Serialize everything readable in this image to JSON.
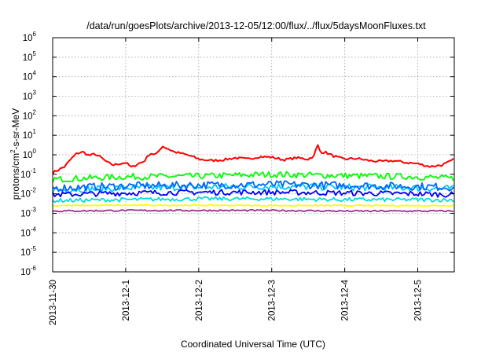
{
  "chart_data": {
    "type": "line",
    "title": "/data/run/goesPlots/archive/2013-12-05/12:00/flux/../flux/5daysMoonFluxes.txt",
    "xlabel": "Coordinated Universal Time (UTC)",
    "ylabel_parts": {
      "base": "protons/cm",
      "exp": "2",
      "rest": "-s-sr-MeV"
    },
    "y_scale": "log",
    "ylim": [
      1e-06,
      1000000.0
    ],
    "y_ticks": [
      {
        "value": 1e-06,
        "base": "10",
        "exp": "-6"
      },
      {
        "value": 1e-05,
        "base": "10",
        "exp": "-5"
      },
      {
        "value": 0.0001,
        "base": "10",
        "exp": "-4"
      },
      {
        "value": 0.001,
        "base": "10",
        "exp": "-3"
      },
      {
        "value": 0.01,
        "base": "10",
        "exp": "-2"
      },
      {
        "value": 0.1,
        "base": "10",
        "exp": "-1"
      },
      {
        "value": 1,
        "base": "10",
        "exp": "0"
      },
      {
        "value": 10,
        "base": "10",
        "exp": "1"
      },
      {
        "value": 100,
        "base": "10",
        "exp": "2"
      },
      {
        "value": 1000,
        "base": "10",
        "exp": "3"
      },
      {
        "value": 10000,
        "base": "10",
        "exp": "4"
      },
      {
        "value": 100000,
        "base": "10",
        "exp": "5"
      },
      {
        "value": 1000000,
        "base": "10",
        "exp": "6"
      }
    ],
    "xlim": [
      "2013-11-30T00:00",
      "2013-12-05T12:00"
    ],
    "x_ticks": [
      "2013-11-30",
      "2013-12-1",
      "2013-12-2",
      "2013-12-3",
      "2013-12-4",
      "2013-12-5"
    ],
    "grid": true,
    "series": [
      {
        "color": "#ff0000",
        "x": [
          "2013-11-30T00:00",
          "2013-11-30T04:00",
          "2013-11-30T06:00",
          "2013-11-30T08:00",
          "2013-11-30T10:00",
          "2013-11-30T12:00",
          "2013-11-30T14:00",
          "2013-11-30T16:00",
          "2013-11-30T18:00",
          "2013-11-30T20:00",
          "2013-11-30T22:00",
          "2013-12-01T00:00",
          "2013-12-01T02:00",
          "2013-12-01T04:00",
          "2013-12-01T06:00",
          "2013-12-01T08:00",
          "2013-12-01T10:00",
          "2013-12-01T12:00",
          "2013-12-01T14:00",
          "2013-12-01T16:00",
          "2013-12-01T18:00",
          "2013-12-01T20:00",
          "2013-12-01T22:00",
          "2013-12-02T00:00",
          "2013-12-02T04:00",
          "2013-12-02T08:00",
          "2013-12-02T12:00",
          "2013-12-02T16:00",
          "2013-12-02T20:00",
          "2013-12-03T00:00",
          "2013-12-03T04:00",
          "2013-12-03T08:00",
          "2013-12-03T12:00",
          "2013-12-03T14:00",
          "2013-12-03T15:00",
          "2013-12-03T16:00",
          "2013-12-03T18:00",
          "2013-12-03T20:00",
          "2013-12-03T22:00",
          "2013-12-04T00:00",
          "2013-12-04T04:00",
          "2013-12-04T08:00",
          "2013-12-04T12:00",
          "2013-12-04T16:00",
          "2013-12-04T20:00",
          "2013-12-05T00:00",
          "2013-12-05T04:00",
          "2013-12-05T08:00",
          "2013-12-05T10:00",
          "2013-12-05T12:00"
        ],
        "y": [
          0.12,
          0.25,
          0.6,
          1.2,
          1.4,
          0.9,
          1.1,
          0.7,
          0.4,
          0.3,
          0.35,
          0.4,
          0.22,
          0.35,
          0.45,
          1.2,
          1.0,
          2.8,
          2.0,
          1.4,
          1.2,
          1.0,
          0.8,
          0.6,
          0.5,
          0.55,
          0.7,
          0.6,
          0.8,
          0.75,
          0.55,
          0.7,
          0.6,
          0.9,
          3.5,
          1.4,
          1.3,
          0.9,
          0.7,
          0.6,
          0.65,
          0.5,
          0.45,
          0.5,
          0.4,
          0.35,
          0.25,
          0.3,
          0.4,
          0.6
        ]
      },
      {
        "color": "#00ff00",
        "x": [
          "2013-11-30T00:00",
          "2013-12-01T00:00",
          "2013-12-02T00:00",
          "2013-12-03T00:00",
          "2013-12-04T00:00",
          "2013-12-05T00:00",
          "2013-12-05T12:00"
        ],
        "y": [
          0.055,
          0.075,
          0.08,
          0.1,
          0.085,
          0.075,
          0.06
        ]
      },
      {
        "color": "#00c8ff",
        "x": [
          "2013-11-30T00:00",
          "2013-12-01T00:00",
          "2013-12-02T00:00",
          "2013-12-03T00:00",
          "2013-12-04T00:00",
          "2013-12-05T00:00",
          "2013-12-05T12:00"
        ],
        "y": [
          0.016,
          0.02,
          0.022,
          0.024,
          0.022,
          0.02,
          0.018
        ]
      },
      {
        "color": "#0064ff",
        "x": [
          "2013-11-30T00:00",
          "2013-12-01T00:00",
          "2013-12-02T00:00",
          "2013-12-03T00:00",
          "2013-12-04T00:00",
          "2013-12-05T00:00",
          "2013-12-05T12:00"
        ],
        "y": [
          0.02,
          0.025,
          0.028,
          0.03,
          0.027,
          0.024,
          0.022
        ]
      },
      {
        "color": "#0000ff",
        "x": [
          "2013-11-30T00:00",
          "2013-12-01T00:00",
          "2013-12-02T00:00",
          "2013-12-03T00:00",
          "2013-12-04T00:00",
          "2013-12-05T00:00",
          "2013-12-05T12:00"
        ],
        "y": [
          0.009,
          0.011,
          0.012,
          0.012,
          0.011,
          0.01,
          0.009
        ]
      },
      {
        "color": "#00dcdc",
        "x": [
          "2013-11-30T00:00",
          "2013-12-01T00:00",
          "2013-12-02T00:00",
          "2013-12-03T00:00",
          "2013-12-04T00:00",
          "2013-12-05T00:00",
          "2013-12-05T12:00"
        ],
        "y": [
          0.0045,
          0.005,
          0.0055,
          0.0055,
          0.005,
          0.005,
          0.0048
        ]
      },
      {
        "color": "#ffff00",
        "x": [
          "2013-11-30T00:00",
          "2013-12-01T00:00",
          "2013-12-02T00:00",
          "2013-12-03T00:00",
          "2013-12-04T00:00",
          "2013-12-05T00:00",
          "2013-12-05T12:00"
        ],
        "y": [
          0.0025,
          0.0026,
          0.0026,
          0.0025,
          0.0025,
          0.0025,
          0.0025
        ]
      },
      {
        "color": "#9b2d8c",
        "x": [
          "2013-11-30T00:00",
          "2013-12-01T00:00",
          "2013-12-02T00:00",
          "2013-12-03T00:00",
          "2013-12-04T00:00",
          "2013-12-05T00:00",
          "2013-12-05T12:00"
        ],
        "y": [
          0.0013,
          0.0014,
          0.0014,
          0.0014,
          0.0013,
          0.0013,
          0.0013
        ]
      }
    ]
  }
}
